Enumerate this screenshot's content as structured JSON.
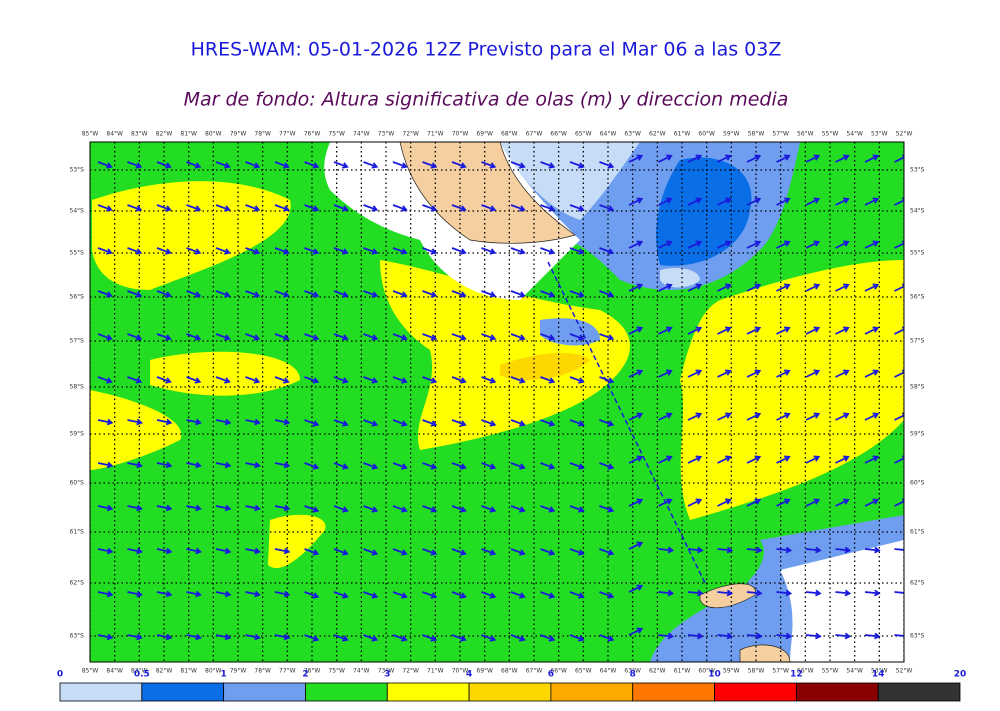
{
  "header": {
    "title": "HRES-WAM: 05-01-2026 12Z Previsto para el Mar 06 a las 03Z",
    "subtitle": "Mar de fondo: Altura significativa de olas (m) y direccion media"
  },
  "map": {
    "longitude_labels": [
      "85°W",
      "84°W",
      "83°W",
      "82°W",
      "81°W",
      "80°W",
      "79°W",
      "78°W",
      "77°W",
      "76°W",
      "75°W",
      "74°W",
      "73°W",
      "72°W",
      "71°W",
      "70°W",
      "69°W",
      "68°W",
      "67°W",
      "66°W",
      "65°W",
      "64°W",
      "63°W",
      "62°W",
      "61°W",
      "60°W",
      "59°W",
      "58°W",
      "57°W",
      "56°W",
      "55°W",
      "54°W",
      "53°W",
      "52°W"
    ],
    "latitude_labels": [
      "53°S",
      "54°S",
      "55°S",
      "56°S",
      "57°S",
      "58°S",
      "59°S",
      "60°S",
      "61°S",
      "62°S",
      "63°S"
    ]
  },
  "legend": {
    "ticks": [
      "0",
      "0.5",
      "1",
      "2",
      "3",
      "4",
      "6",
      "8",
      "10",
      "12",
      "14",
      "20"
    ],
    "colors": [
      "#c6dcf7",
      "#0a6ee6",
      "#6f9ef0",
      "#22dd22",
      "#ffff00",
      "#ffd700",
      "#ffaa00",
      "#ff7700",
      "#ff0000",
      "#8b0000",
      "#333333"
    ]
  }
}
